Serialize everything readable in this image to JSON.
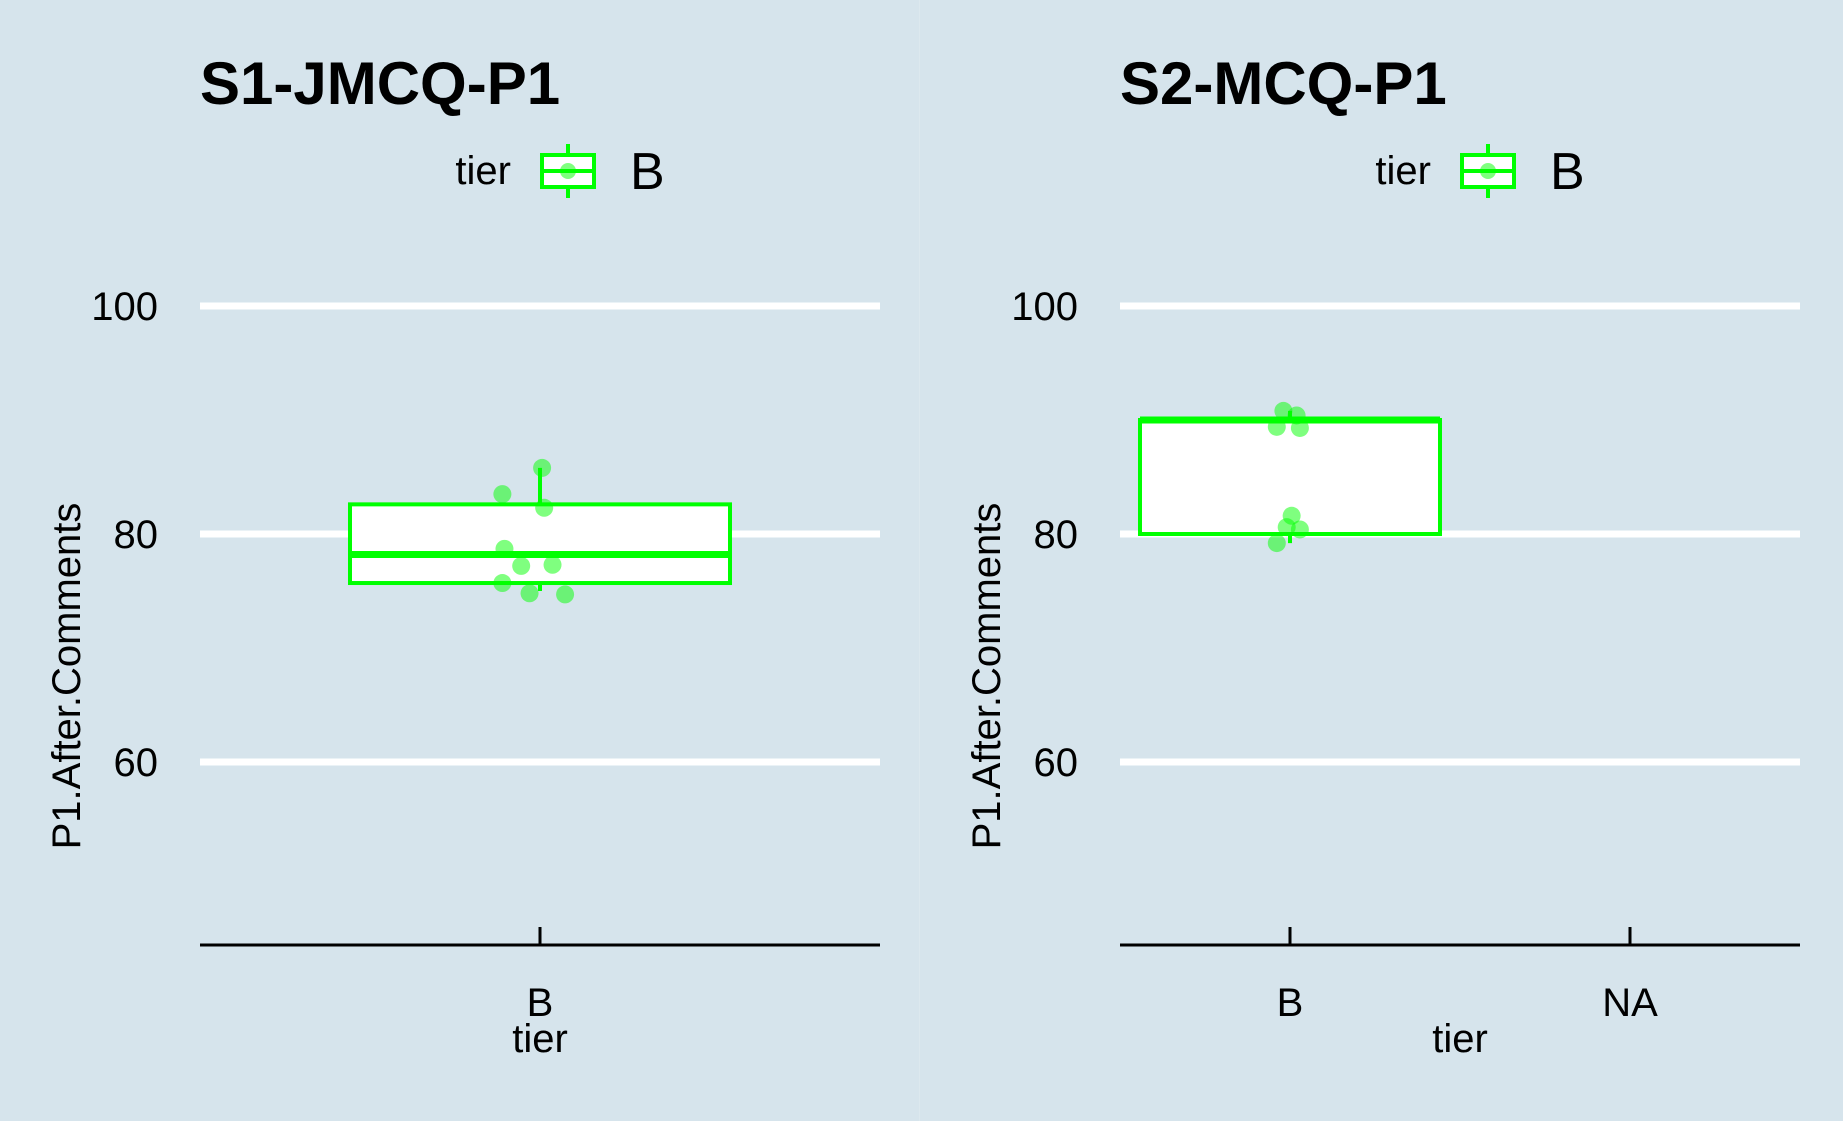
{
  "colors": {
    "background": "#d6e4ec",
    "gridline": "#ffffff",
    "series": "#00ff00",
    "axis": "#000000",
    "box_fill": "#ffffff"
  },
  "chart_data": [
    {
      "type": "boxplot",
      "title": "S1-JMCQ-P1",
      "xlabel": "tier",
      "ylabel": "P1.After.Comments",
      "legend": {
        "title": "tier",
        "entries": [
          "B"
        ],
        "placement": "top"
      },
      "categories": [
        "B"
      ],
      "ylim": [
        44,
        106
      ],
      "yticks": [
        60,
        80,
        100
      ],
      "grid": true,
      "boxes": [
        {
          "category": "B",
          "q1": 75.7,
          "median": 78.2,
          "q3": 82.6,
          "whisker_low": 75.0,
          "whisker_high": 85.8
        }
      ],
      "points": [
        {
          "category": "B",
          "jitter": -0.18,
          "y": 83.5
        },
        {
          "category": "B",
          "jitter": 0.01,
          "y": 85.8
        },
        {
          "category": "B",
          "jitter": 0.02,
          "y": 82.3
        },
        {
          "category": "B",
          "jitter": -0.17,
          "y": 78.7
        },
        {
          "category": "B",
          "jitter": -0.09,
          "y": 77.2
        },
        {
          "category": "B",
          "jitter": 0.06,
          "y": 77.3
        },
        {
          "category": "B",
          "jitter": -0.18,
          "y": 75.7
        },
        {
          "category": "B",
          "jitter": -0.05,
          "y": 74.8
        },
        {
          "category": "B",
          "jitter": 0.12,
          "y": 74.7
        }
      ]
    },
    {
      "type": "boxplot",
      "title": "S2-MCQ-P1",
      "xlabel": "tier",
      "ylabel": "P1.After.Comments",
      "legend": {
        "title": "tier",
        "entries": [
          "B"
        ],
        "placement": "top"
      },
      "categories": [
        "B",
        "NA"
      ],
      "ylim": [
        44,
        106
      ],
      "yticks": [
        60,
        80,
        100
      ],
      "grid": true,
      "boxes": [
        {
          "category": "B",
          "q1": 80.0,
          "median": 90.0,
          "q3": 90.0,
          "whisker_low": 79.2,
          "whisker_high": 90.8
        }
      ],
      "points": [
        {
          "category": "B",
          "jitter": -0.04,
          "y": 90.8
        },
        {
          "category": "B",
          "jitter": 0.04,
          "y": 90.4
        },
        {
          "category": "B",
          "jitter": -0.08,
          "y": 89.4
        },
        {
          "category": "B",
          "jitter": 0.06,
          "y": 89.3
        },
        {
          "category": "B",
          "jitter": 0.01,
          "y": 81.6
        },
        {
          "category": "B",
          "jitter": -0.02,
          "y": 80.6
        },
        {
          "category": "B",
          "jitter": 0.06,
          "y": 80.4
        },
        {
          "category": "B",
          "jitter": -0.08,
          "y": 79.2
        }
      ]
    }
  ]
}
